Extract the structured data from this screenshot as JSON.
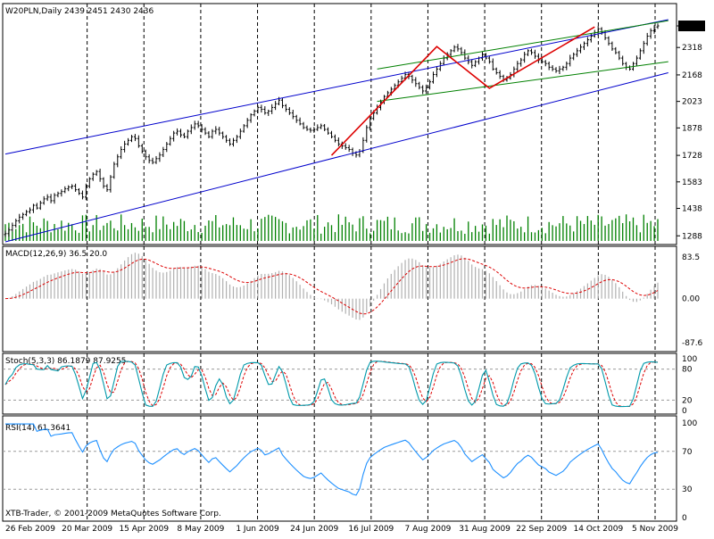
{
  "chart_data": [
    {
      "type": "candlestick",
      "title": "W20PLN,Daily  2439 2451 2430 2436",
      "current_price": "2436",
      "ylim": [
        1260,
        2480
      ],
      "y_ticks": [
        "2436",
        "2318",
        "2168",
        "2023",
        "1878",
        "1728",
        "1583",
        "1438",
        "1288"
      ],
      "close_series": [
        1300,
        1320,
        1345,
        1370,
        1390,
        1405,
        1420,
        1430,
        1455,
        1440,
        1468,
        1490,
        1500,
        1480,
        1510,
        1520,
        1530,
        1545,
        1555,
        1560,
        1540,
        1520,
        1500,
        1560,
        1600,
        1625,
        1640,
        1600,
        1560,
        1540,
        1610,
        1680,
        1720,
        1760,
        1790,
        1810,
        1830,
        1820,
        1780,
        1750,
        1720,
        1700,
        1690,
        1710,
        1730,
        1760,
        1790,
        1820,
        1850,
        1860,
        1840,
        1830,
        1860,
        1880,
        1900,
        1890,
        1870,
        1850,
        1830,
        1860,
        1870,
        1850,
        1830,
        1810,
        1790,
        1810,
        1830,
        1860,
        1890,
        1920,
        1950,
        1970,
        1990,
        1980,
        1960,
        1970,
        1990,
        2010,
        2030,
        2000,
        1980,
        1960,
        1940,
        1920,
        1900,
        1880,
        1870,
        1865,
        1870,
        1880,
        1890,
        1870,
        1850,
        1830,
        1810,
        1790,
        1780,
        1770,
        1760,
        1740,
        1730,
        1750,
        1810,
        1880,
        1930,
        1960,
        1990,
        2020,
        2050,
        2070,
        2090,
        2110,
        2130,
        2150,
        2170,
        2160,
        2140,
        2120,
        2100,
        2080,
        2100,
        2130,
        2170,
        2200,
        2230,
        2260,
        2280,
        2300,
        2320,
        2310,
        2290,
        2260,
        2240,
        2220,
        2240,
        2260,
        2280,
        2260,
        2240,
        2200,
        2180,
        2160,
        2140,
        2150,
        2170,
        2200,
        2230,
        2250,
        2280,
        2300,
        2290,
        2270,
        2250,
        2240,
        2230,
        2210,
        2200,
        2190,
        2200,
        2210,
        2230,
        2260,
        2280,
        2300,
        2320,
        2340,
        2360,
        2380,
        2400,
        2420,
        2400,
        2370,
        2340,
        2310,
        2290,
        2260,
        2230,
        2210,
        2200,
        2230,
        2260,
        2300,
        2340,
        2380,
        2410,
        2430,
        2436
      ],
      "volume_max": 100,
      "indicators": [
        {
          "name": "MACD(12,26,9) 36.5 20.0",
          "y_ticks": [
            "83.5",
            "0.00",
            "-87.6"
          ],
          "ylim": [
            -95,
            92
          ]
        },
        {
          "name": "Stoch(5,3,3) 86.1879 87.9255",
          "y_ticks": [
            "100",
            "80",
            "20",
            "0"
          ],
          "ylim": [
            0,
            100
          ]
        },
        {
          "name": "RSI(14) 61.3641",
          "y_ticks": [
            "100",
            "70",
            "30",
            "0"
          ],
          "ylim": [
            0,
            100
          ]
        }
      ],
      "x_labels": [
        "26 Feb 2009",
        "20 Mar 2009",
        "15 Apr 2009",
        "8 May 2009",
        "1 Jun 2009",
        "24 Jun 2009",
        "16 Jul 2009",
        "7 Aug 2009",
        "31 Aug 2009",
        "22 Sep 2009",
        "14 Oct 2009",
        "5 Nov 2009"
      ],
      "trend_lines": {
        "blue_channel": [
          [
            0,
            1735,
            189,
            2470
          ],
          [
            0,
            1255,
            189,
            2180
          ]
        ],
        "green_channel": [
          [
            106,
            2023,
            189,
            2240
          ],
          [
            106,
            2200,
            189,
            2465
          ]
        ],
        "red_zigzag": [
          [
            93,
            1728
          ],
          [
            123,
            2323
          ],
          [
            138,
            2095
          ],
          [
            168,
            2430
          ]
        ]
      }
    }
  ],
  "footer_text": "XTB-Trader, © 2001-2009 MetaQuotes Software Corp.",
  "colors": {
    "price_bars": "#000000",
    "volume": "#008000",
    "blue_line": "#0000cc",
    "green_line": "#008000",
    "red_line": "#dd0000",
    "macd_hist": "#b0b0b0",
    "macd_signal": "#dd0000",
    "stoch_main": "#0099aa",
    "stoch_signal": "#dd0000",
    "rsi": "#1e90ff"
  }
}
